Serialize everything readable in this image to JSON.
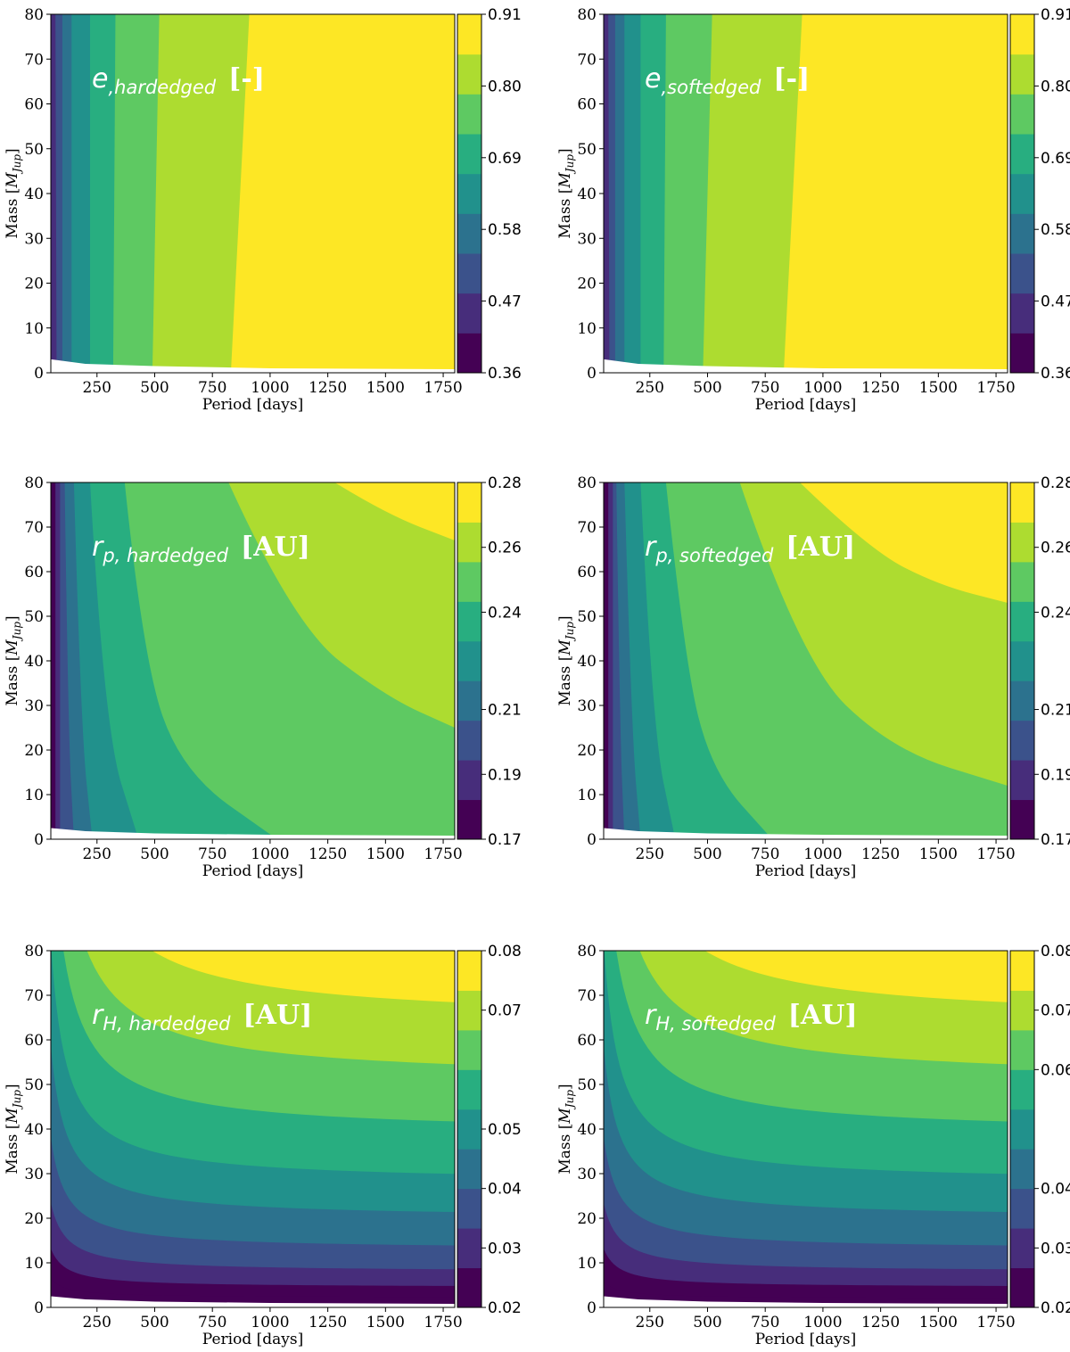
{
  "colors": {
    "viridis9": [
      "#440154",
      "#472d7b",
      "#3b528b",
      "#2c728e",
      "#21918c",
      "#28ae80",
      "#5ec962",
      "#addc30",
      "#fde725"
    ],
    "axis": "#000000",
    "annotation": "#ffffff"
  },
  "chart_data": [
    {
      "type": "contour",
      "panel": "top-left",
      "annotation": {
        "var": "e",
        "subscript": ",hardedged",
        "unit": "[-]"
      },
      "xlabel": "Period [days]",
      "ylabel": "Mass [M_Jup]",
      "ylabel_main": "Mass [",
      "ylabel_sub": "Jup",
      "ylabel_close": "]",
      "xlim": [
        50,
        1800
      ],
      "ylim": [
        0,
        80
      ],
      "xticks": [
        250,
        500,
        750,
        1000,
        1250,
        1500,
        1750
      ],
      "xtick_labels": [
        "250",
        "500",
        "750",
        "1000",
        "1250",
        "1500",
        "1750"
      ],
      "yticks": [
        0,
        10,
        20,
        30,
        40,
        50,
        60,
        70,
        80
      ],
      "ytick_labels": [
        "0",
        "10",
        "20",
        "30",
        "40",
        "50",
        "60",
        "70",
        "80"
      ],
      "colorbar_range": [
        0.36,
        0.91
      ],
      "colorbar_tick_values": [
        0.36,
        0.47,
        0.58,
        0.69,
        0.8,
        0.91
      ],
      "colorbar_ticks": [
        "0.36",
        "0.47",
        "0.58",
        "0.69",
        "0.80",
        "0.91"
      ],
      "band_kind": "vertical",
      "band_boundaries_period_at_mass0": [
        75,
        100,
        140,
        220,
        320,
        490,
        830
      ],
      "band_boundaries_period_at_mass80": [
        70,
        100,
        140,
        220,
        330,
        520,
        910
      ],
      "blank_cutoff_mass": [
        3.0,
        2.0,
        1.5,
        1.0,
        0.8
      ],
      "blank_cutoff_period": [
        50,
        200,
        500,
        1000,
        1800
      ]
    },
    {
      "type": "contour",
      "panel": "top-right",
      "annotation": {
        "var": "e",
        "subscript": ",softedged",
        "unit": "[-]"
      },
      "xlabel": "Period [days]",
      "ylabel": "Mass [M_Jup]",
      "ylabel_main": "Mass [",
      "ylabel_sub": "Jup",
      "ylabel_close": "]",
      "xlim": [
        50,
        1800
      ],
      "ylim": [
        0,
        80
      ],
      "xticks": [
        250,
        500,
        750,
        1000,
        1250,
        1500,
        1750
      ],
      "xtick_labels": [
        "250",
        "500",
        "750",
        "1000",
        "1250",
        "1500",
        "1750"
      ],
      "yticks": [
        0,
        10,
        20,
        30,
        40,
        50,
        60,
        70,
        80
      ],
      "ytick_labels": [
        "0",
        "10",
        "20",
        "30",
        "40",
        "50",
        "60",
        "70",
        "80"
      ],
      "colorbar_range": [
        0.36,
        0.91
      ],
      "colorbar_tick_values": [
        0.36,
        0.47,
        0.58,
        0.69,
        0.8,
        0.91
      ],
      "colorbar_ticks": [
        "0.36",
        "0.47",
        "0.58",
        "0.69",
        "0.80",
        "0.91"
      ],
      "band_kind": "vertical",
      "band_boundaries_period_at_mass0": [
        75,
        100,
        140,
        210,
        310,
        480,
        830
      ],
      "band_boundaries_period_at_mass80": [
        70,
        100,
        140,
        210,
        320,
        520,
        910
      ],
      "blank_cutoff_mass": [
        3.0,
        2.0,
        1.5,
        1.0,
        0.8
      ],
      "blank_cutoff_period": [
        50,
        200,
        500,
        1000,
        1800
      ]
    },
    {
      "type": "contour",
      "panel": "middle-left",
      "annotation": {
        "var": "r",
        "subscript": "p, hardedged",
        "unit": "[AU]"
      },
      "xlabel": "Period [days]",
      "ylabel": "Mass [M_Jup]",
      "ylabel_main": "Mass [",
      "ylabel_sub": "Jup",
      "ylabel_close": "]",
      "xlim": [
        50,
        1800
      ],
      "ylim": [
        0,
        80
      ],
      "xticks": [
        250,
        500,
        750,
        1000,
        1250,
        1500,
        1750
      ],
      "xtick_labels": [
        "250",
        "500",
        "750",
        "1000",
        "1250",
        "1500",
        "1750"
      ],
      "yticks": [
        0,
        10,
        20,
        30,
        40,
        50,
        60,
        70,
        80
      ],
      "ytick_labels": [
        "0",
        "10",
        "20",
        "30",
        "40",
        "50",
        "60",
        "70",
        "80"
      ],
      "colorbar_range": [
        0.17,
        0.28
      ],
      "colorbar_tick_values": [
        0.17,
        0.19,
        0.21,
        0.24,
        0.26,
        0.28
      ],
      "colorbar_ticks": [
        "0.17",
        "0.19",
        "0.21",
        "0.24",
        "0.26",
        "0.28"
      ],
      "band_kind": "curve",
      "band_curves": [
        {
          "period": [
            70,
            70
          ],
          "mass": [
            80,
            0
          ]
        },
        {
          "period": [
            90,
            90
          ],
          "mass": [
            80,
            0
          ]
        },
        {
          "period": [
            110,
            125,
            150
          ],
          "mass": [
            80,
            25,
            0
          ]
        },
        {
          "period": [
            150,
            180,
            230
          ],
          "mass": [
            80,
            25,
            0
          ]
        },
        {
          "period": [
            220,
            280,
            430
          ],
          "mass": [
            80,
            25,
            0
          ]
        },
        {
          "period": [
            370,
            450,
            620,
            1030
          ],
          "mass": [
            80,
            40,
            15,
            0
          ]
        },
        {
          "period": [
            820,
            1100,
            1500,
            1800
          ],
          "mass": [
            80,
            48,
            32,
            25
          ]
        },
        {
          "period": [
            1280,
            1500,
            1800
          ],
          "mass": [
            80,
            73,
            67
          ]
        }
      ]
    },
    {
      "type": "contour",
      "panel": "middle-right",
      "annotation": {
        "var": "r",
        "subscript": "p, softedged",
        "unit": "[AU]"
      },
      "xlabel": "Period [days]",
      "ylabel": "Mass [M_Jup]",
      "ylabel_main": "Mass [",
      "ylabel_sub": "Jup",
      "ylabel_close": "]",
      "xlim": [
        50,
        1800
      ],
      "ylim": [
        0,
        80
      ],
      "xticks": [
        250,
        500,
        750,
        1000,
        1250,
        1500,
        1750
      ],
      "xtick_labels": [
        "250",
        "500",
        "750",
        "1000",
        "1250",
        "1500",
        "1750"
      ],
      "yticks": [
        0,
        10,
        20,
        30,
        40,
        50,
        60,
        70,
        80
      ],
      "ytick_labels": [
        "0",
        "10",
        "20",
        "30",
        "40",
        "50",
        "60",
        "70",
        "80"
      ],
      "colorbar_range": [
        0.17,
        0.28
      ],
      "colorbar_tick_values": [
        0.17,
        0.19,
        0.21,
        0.24,
        0.26,
        0.28
      ],
      "colorbar_ticks": [
        "0.17",
        "0.19",
        "0.21",
        "0.24",
        "0.26",
        "0.28"
      ],
      "band_kind": "curve",
      "band_curves": [
        {
          "period": [
            70,
            70
          ],
          "mass": [
            80,
            0
          ]
        },
        {
          "period": [
            90,
            90
          ],
          "mass": [
            80,
            0
          ]
        },
        {
          "period": [
            105,
            120,
            140
          ],
          "mass": [
            80,
            25,
            0
          ]
        },
        {
          "period": [
            140,
            170,
            210
          ],
          "mass": [
            80,
            25,
            0
          ]
        },
        {
          "period": [
            210,
            260,
            360
          ],
          "mass": [
            80,
            25,
            0
          ]
        },
        {
          "period": [
            320,
            400,
            520,
            780
          ],
          "mass": [
            80,
            40,
            15,
            0
          ]
        },
        {
          "period": [
            640,
            900,
            1300,
            1800
          ],
          "mass": [
            80,
            40,
            20,
            12
          ]
        },
        {
          "period": [
            900,
            1200,
            1500,
            1800
          ],
          "mass": [
            80,
            65,
            57,
            53
          ]
        }
      ]
    },
    {
      "type": "contour",
      "panel": "bottom-left",
      "annotation": {
        "var": "r",
        "subscript": "H, hardedged",
        "unit": "[AU]"
      },
      "xlabel": "Period [days]",
      "ylabel": "Mass [M_Jup]",
      "ylabel_main": "Mass [",
      "ylabel_sub": "Jup",
      "ylabel_close": "]",
      "xlim": [
        50,
        1800
      ],
      "ylim": [
        0,
        80
      ],
      "xticks": [
        250,
        500,
        750,
        1000,
        1250,
        1500,
        1750
      ],
      "xtick_labels": [
        "250",
        "500",
        "750",
        "1000",
        "1250",
        "1500",
        "1750"
      ],
      "yticks": [
        0,
        10,
        20,
        30,
        40,
        50,
        60,
        70,
        80
      ],
      "ytick_labels": [
        "0",
        "10",
        "20",
        "30",
        "40",
        "50",
        "60",
        "70",
        "80"
      ],
      "colorbar_range": [
        0.02,
        0.08
      ],
      "colorbar_tick_values": [
        0.02,
        0.03,
        0.04,
        0.05,
        0.07,
        0.08
      ],
      "colorbar_ticks": [
        "0.02",
        "0.03",
        "0.04",
        "0.05",
        "0.07",
        "0.08"
      ],
      "band_kind": "hyperbolic",
      "band_asymptote_mass": [
        2.2,
        4.5,
        8,
        13,
        20,
        28,
        39,
        51,
        64
      ],
      "band_shape_constant": 0.42
    },
    {
      "type": "contour",
      "panel": "bottom-right",
      "annotation": {
        "var": "r",
        "subscript": "H, softedged",
        "unit": "[AU]"
      },
      "xlabel": "Period [days]",
      "ylabel": "Mass [M_Jup]",
      "ylabel_main": "Mass [",
      "ylabel_sub": "Jup",
      "ylabel_close": "]",
      "xlim": [
        50,
        1800
      ],
      "ylim": [
        0,
        80
      ],
      "xticks": [
        250,
        500,
        750,
        1000,
        1250,
        1500,
        1750
      ],
      "xtick_labels": [
        "250",
        "500",
        "750",
        "1000",
        "1250",
        "1500",
        "1750"
      ],
      "yticks": [
        0,
        10,
        20,
        30,
        40,
        50,
        60,
        70,
        80
      ],
      "ytick_labels": [
        "0",
        "10",
        "20",
        "30",
        "40",
        "50",
        "60",
        "70",
        "80"
      ],
      "colorbar_range": [
        0.02,
        0.08
      ],
      "colorbar_tick_values": [
        0.02,
        0.03,
        0.04,
        0.06,
        0.07,
        0.08
      ],
      "colorbar_ticks": [
        "0.02",
        "0.03",
        "0.04",
        "0.06",
        "0.07",
        "0.08"
      ],
      "band_kind": "hyperbolic",
      "band_asymptote_mass": [
        2.0,
        4.5,
        8,
        13,
        20,
        28,
        39,
        51,
        64
      ],
      "band_shape_constant": 0.42
    }
  ]
}
